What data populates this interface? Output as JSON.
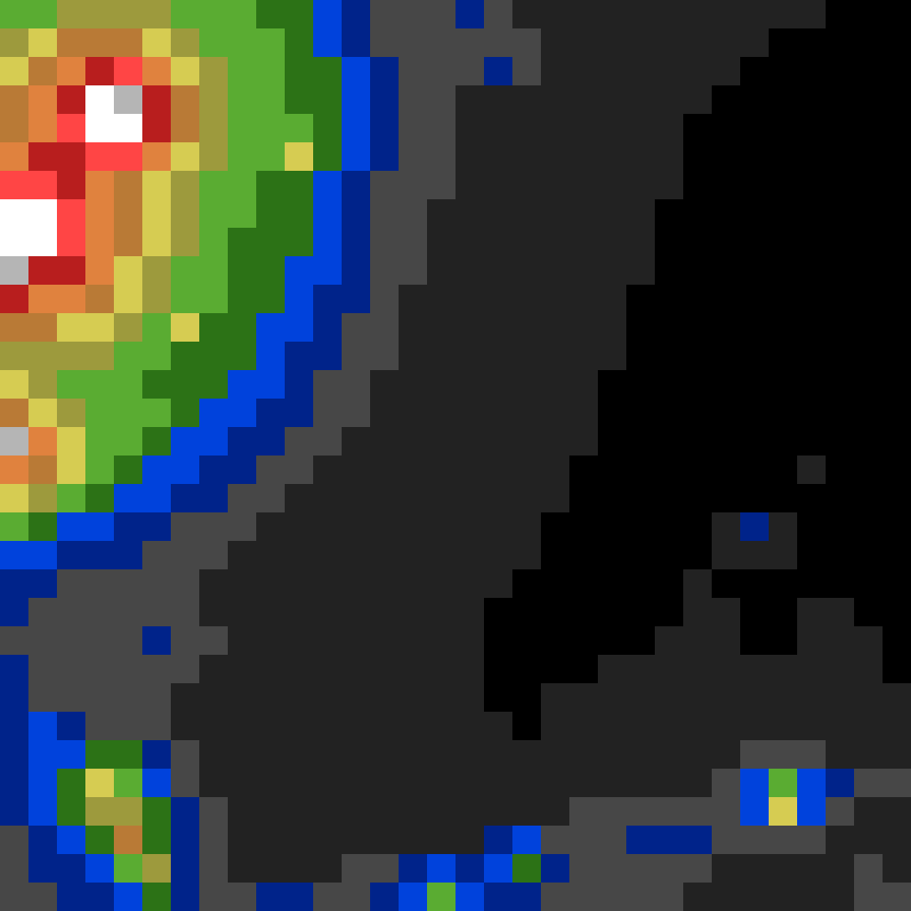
{
  "chart_data": {
    "type": "heatmap",
    "tick_labels": false,
    "colors": [
      "#000000",
      "#222222",
      "#474747",
      "#00238a",
      "#0042dc",
      "#2c7216",
      "#5aac32",
      "#9d9a3d",
      "#d6cc52",
      "#b97a36",
      "#e0823e",
      "#b81e1e",
      "#ff4545",
      "#b5b5b5",
      "#ffffff"
    ],
    "cells": [
      [
        6,
        6,
        7,
        7,
        7,
        7,
        6,
        6,
        6,
        5,
        5,
        4,
        3,
        2,
        2,
        2,
        3,
        2,
        1,
        1,
        1,
        1,
        1,
        1,
        1,
        1,
        1,
        1,
        1,
        0,
        0,
        0
      ],
      [
        7,
        8,
        9,
        9,
        9,
        8,
        7,
        6,
        6,
        6,
        5,
        4,
        3,
        2,
        2,
        2,
        2,
        2,
        2,
        1,
        1,
        1,
        1,
        1,
        1,
        1,
        1,
        0,
        0,
        0,
        0,
        0
      ],
      [
        8,
        9,
        10,
        11,
        12,
        10,
        8,
        7,
        6,
        6,
        5,
        5,
        4,
        3,
        2,
        2,
        2,
        3,
        2,
        1,
        1,
        1,
        1,
        1,
        1,
        1,
        0,
        0,
        0,
        0,
        0,
        0
      ],
      [
        9,
        10,
        11,
        14,
        13,
        11,
        9,
        7,
        6,
        6,
        5,
        5,
        4,
        3,
        2,
        2,
        1,
        1,
        1,
        1,
        1,
        1,
        1,
        1,
        1,
        0,
        0,
        0,
        0,
        0,
        0,
        0
      ],
      [
        9,
        10,
        12,
        14,
        14,
        11,
        9,
        7,
        6,
        6,
        6,
        5,
        4,
        3,
        2,
        2,
        1,
        1,
        1,
        1,
        1,
        1,
        1,
        1,
        0,
        0,
        0,
        0,
        0,
        0,
        0,
        0
      ],
      [
        10,
        11,
        11,
        12,
        12,
        10,
        8,
        7,
        6,
        6,
        8,
        5,
        4,
        3,
        2,
        2,
        1,
        1,
        1,
        1,
        1,
        1,
        1,
        1,
        0,
        0,
        0,
        0,
        0,
        0,
        0,
        0
      ],
      [
        12,
        12,
        11,
        10,
        9,
        8,
        7,
        6,
        6,
        5,
        5,
        4,
        3,
        2,
        2,
        2,
        1,
        1,
        1,
        1,
        1,
        1,
        1,
        1,
        0,
        0,
        0,
        0,
        0,
        0,
        0,
        0
      ],
      [
        14,
        14,
        12,
        10,
        9,
        8,
        7,
        6,
        6,
        5,
        5,
        4,
        3,
        2,
        2,
        1,
        1,
        1,
        1,
        1,
        1,
        1,
        1,
        0,
        0,
        0,
        0,
        0,
        0,
        0,
        0,
        0
      ],
      [
        14,
        14,
        12,
        10,
        9,
        8,
        7,
        6,
        5,
        5,
        5,
        4,
        3,
        2,
        2,
        1,
        1,
        1,
        1,
        1,
        1,
        1,
        1,
        0,
        0,
        0,
        0,
        0,
        0,
        0,
        0,
        0
      ],
      [
        13,
        11,
        11,
        10,
        8,
        7,
        6,
        6,
        5,
        5,
        4,
        4,
        3,
        2,
        2,
        1,
        1,
        1,
        1,
        1,
        1,
        1,
        1,
        0,
        0,
        0,
        0,
        0,
        0,
        0,
        0,
        0
      ],
      [
        11,
        10,
        10,
        9,
        8,
        7,
        6,
        6,
        5,
        5,
        4,
        3,
        3,
        2,
        1,
        1,
        1,
        1,
        1,
        1,
        1,
        1,
        0,
        0,
        0,
        0,
        0,
        0,
        0,
        0,
        0,
        0
      ],
      [
        9,
        9,
        8,
        8,
        7,
        6,
        8,
        5,
        5,
        4,
        4,
        3,
        2,
        2,
        1,
        1,
        1,
        1,
        1,
        1,
        1,
        1,
        0,
        0,
        0,
        0,
        0,
        0,
        0,
        0,
        0,
        0
      ],
      [
        7,
        7,
        7,
        7,
        6,
        6,
        5,
        5,
        5,
        4,
        3,
        3,
        2,
        2,
        1,
        1,
        1,
        1,
        1,
        1,
        1,
        1,
        0,
        0,
        0,
        0,
        0,
        0,
        0,
        0,
        0,
        0
      ],
      [
        8,
        7,
        6,
        6,
        6,
        5,
        5,
        5,
        4,
        4,
        3,
        2,
        2,
        1,
        1,
        1,
        1,
        1,
        1,
        1,
        1,
        0,
        0,
        0,
        0,
        0,
        0,
        0,
        0,
        0,
        0,
        0
      ],
      [
        9,
        8,
        7,
        6,
        6,
        6,
        5,
        4,
        4,
        3,
        3,
        2,
        2,
        1,
        1,
        1,
        1,
        1,
        1,
        1,
        1,
        0,
        0,
        0,
        0,
        0,
        0,
        0,
        0,
        0,
        0,
        0
      ],
      [
        13,
        10,
        8,
        6,
        6,
        5,
        4,
        4,
        3,
        3,
        2,
        2,
        1,
        1,
        1,
        1,
        1,
        1,
        1,
        1,
        1,
        0,
        0,
        0,
        0,
        0,
        0,
        0,
        0,
        0,
        0,
        0
      ],
      [
        10,
        9,
        8,
        6,
        5,
        4,
        4,
        3,
        3,
        2,
        2,
        1,
        1,
        1,
        1,
        1,
        1,
        1,
        1,
        1,
        0,
        0,
        0,
        0,
        0,
        0,
        0,
        0,
        1,
        0,
        0,
        0
      ],
      [
        8,
        7,
        6,
        5,
        4,
        4,
        3,
        3,
        2,
        2,
        1,
        1,
        1,
        1,
        1,
        1,
        1,
        1,
        1,
        1,
        0,
        0,
        0,
        0,
        0,
        0,
        0,
        0,
        0,
        0,
        0,
        0
      ],
      [
        6,
        5,
        4,
        4,
        3,
        3,
        2,
        2,
        2,
        1,
        1,
        1,
        1,
        1,
        1,
        1,
        1,
        1,
        1,
        0,
        0,
        0,
        0,
        0,
        0,
        1,
        3,
        1,
        0,
        0,
        0,
        0
      ],
      [
        4,
        4,
        3,
        3,
        3,
        2,
        2,
        2,
        1,
        1,
        1,
        1,
        1,
        1,
        1,
        1,
        1,
        1,
        1,
        0,
        0,
        0,
        0,
        0,
        0,
        1,
        1,
        1,
        0,
        0,
        0,
        0
      ],
      [
        3,
        3,
        2,
        2,
        2,
        2,
        2,
        1,
        1,
        1,
        1,
        1,
        1,
        1,
        1,
        1,
        1,
        1,
        0,
        0,
        0,
        0,
        0,
        0,
        1,
        0,
        0,
        0,
        0,
        0,
        0,
        0
      ],
      [
        3,
        2,
        2,
        2,
        2,
        2,
        2,
        1,
        1,
        1,
        1,
        1,
        1,
        1,
        1,
        1,
        1,
        0,
        0,
        0,
        0,
        0,
        0,
        0,
        1,
        1,
        0,
        0,
        1,
        1,
        0,
        0
      ],
      [
        2,
        2,
        2,
        2,
        2,
        3,
        2,
        2,
        1,
        1,
        1,
        1,
        1,
        1,
        1,
        1,
        1,
        0,
        0,
        0,
        0,
        0,
        0,
        1,
        1,
        1,
        0,
        0,
        1,
        1,
        1,
        0
      ],
      [
        3,
        2,
        2,
        2,
        2,
        2,
        2,
        1,
        1,
        1,
        1,
        1,
        1,
        1,
        1,
        1,
        1,
        0,
        0,
        0,
        0,
        1,
        1,
        1,
        1,
        1,
        1,
        1,
        1,
        1,
        1,
        0
      ],
      [
        3,
        2,
        2,
        2,
        2,
        2,
        1,
        1,
        1,
        1,
        1,
        1,
        1,
        1,
        1,
        1,
        1,
        0,
        0,
        1,
        1,
        1,
        1,
        1,
        1,
        1,
        1,
        1,
        1,
        1,
        1,
        1
      ],
      [
        3,
        4,
        3,
        2,
        2,
        2,
        1,
        1,
        1,
        1,
        1,
        1,
        1,
        1,
        1,
        1,
        1,
        1,
        0,
        1,
        1,
        1,
        1,
        1,
        1,
        1,
        1,
        1,
        1,
        1,
        1,
        1
      ],
      [
        3,
        4,
        4,
        5,
        5,
        3,
        2,
        1,
        1,
        1,
        1,
        1,
        1,
        1,
        1,
        1,
        1,
        1,
        1,
        1,
        1,
        1,
        1,
        1,
        1,
        1,
        2,
        2,
        2,
        1,
        1,
        1
      ],
      [
        3,
        4,
        5,
        8,
        6,
        4,
        2,
        1,
        1,
        1,
        1,
        1,
        1,
        1,
        1,
        1,
        1,
        1,
        1,
        1,
        1,
        1,
        1,
        1,
        1,
        2,
        4,
        6,
        4,
        3,
        2,
        2
      ],
      [
        3,
        4,
        5,
        7,
        7,
        5,
        3,
        2,
        1,
        1,
        1,
        1,
        1,
        1,
        1,
        1,
        1,
        1,
        1,
        1,
        2,
        2,
        2,
        2,
        2,
        2,
        4,
        8,
        4,
        2,
        1,
        1
      ],
      [
        2,
        3,
        4,
        5,
        9,
        5,
        3,
        2,
        1,
        1,
        1,
        1,
        1,
        1,
        1,
        1,
        1,
        3,
        4,
        2,
        2,
        2,
        3,
        3,
        3,
        2,
        2,
        2,
        2,
        1,
        1,
        1
      ],
      [
        2,
        3,
        3,
        4,
        6,
        7,
        3,
        2,
        1,
        1,
        1,
        1,
        2,
        2,
        3,
        4,
        3,
        4,
        5,
        3,
        2,
        2,
        2,
        2,
        2,
        1,
        1,
        1,
        1,
        1,
        2,
        1
      ],
      [
        2,
        2,
        3,
        3,
        4,
        5,
        3,
        2,
        2,
        3,
        3,
        2,
        2,
        3,
        4,
        6,
        4,
        3,
        3,
        2,
        2,
        2,
        2,
        2,
        1,
        1,
        1,
        1,
        1,
        1,
        2,
        2
      ]
    ]
  }
}
